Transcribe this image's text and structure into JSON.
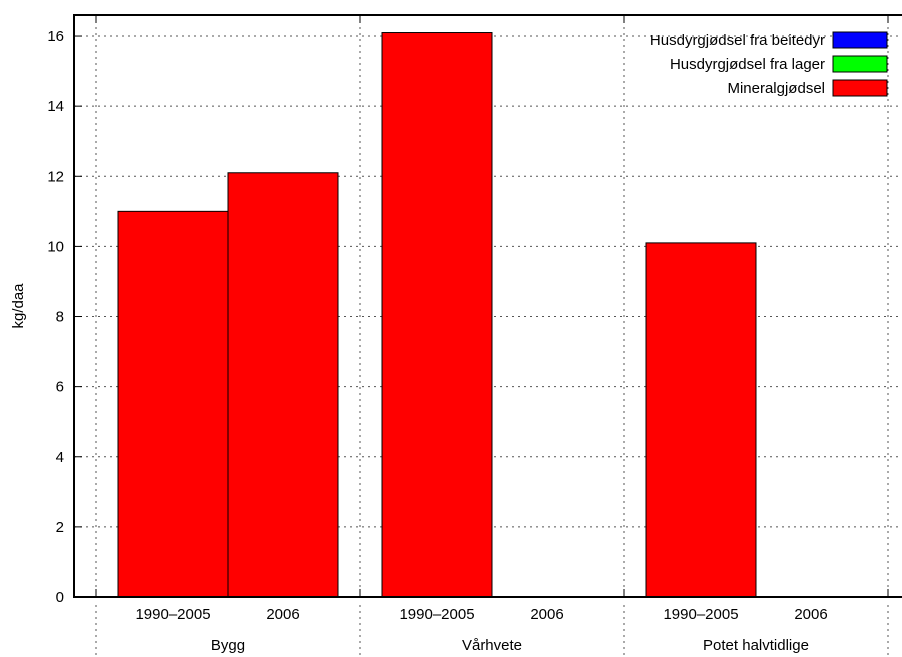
{
  "chart_data": {
    "type": "bar",
    "ylabel": "kg/daa",
    "ylim": [
      0,
      16.6
    ],
    "y_ticks": [
      0,
      2,
      4,
      6,
      8,
      10,
      12,
      14,
      16
    ],
    "grid": true,
    "legend_position": "top-right",
    "groups": [
      {
        "name": "Bygg",
        "categories": [
          "1990–2005",
          "2006"
        ]
      },
      {
        "name": "Vårhvete",
        "categories": [
          "1990–2005",
          "2006"
        ]
      },
      {
        "name": "Potet halvtidlige",
        "categories": [
          "1990–2005",
          "2006"
        ]
      }
    ],
    "series": [
      {
        "name": "Husdyrgjødsel fra beitedyr",
        "color": "#0000ff",
        "values": [
          0,
          0,
          0,
          0,
          0,
          0
        ]
      },
      {
        "name": "Husdyrgjødsel fra lager",
        "color": "#00ff00",
        "values": [
          0,
          0,
          0,
          0,
          0,
          0
        ]
      },
      {
        "name": "Mineralgjødsel",
        "color": "#ff0000",
        "values": [
          11.0,
          12.1,
          16.1,
          0,
          10.1,
          0
        ]
      }
    ]
  }
}
